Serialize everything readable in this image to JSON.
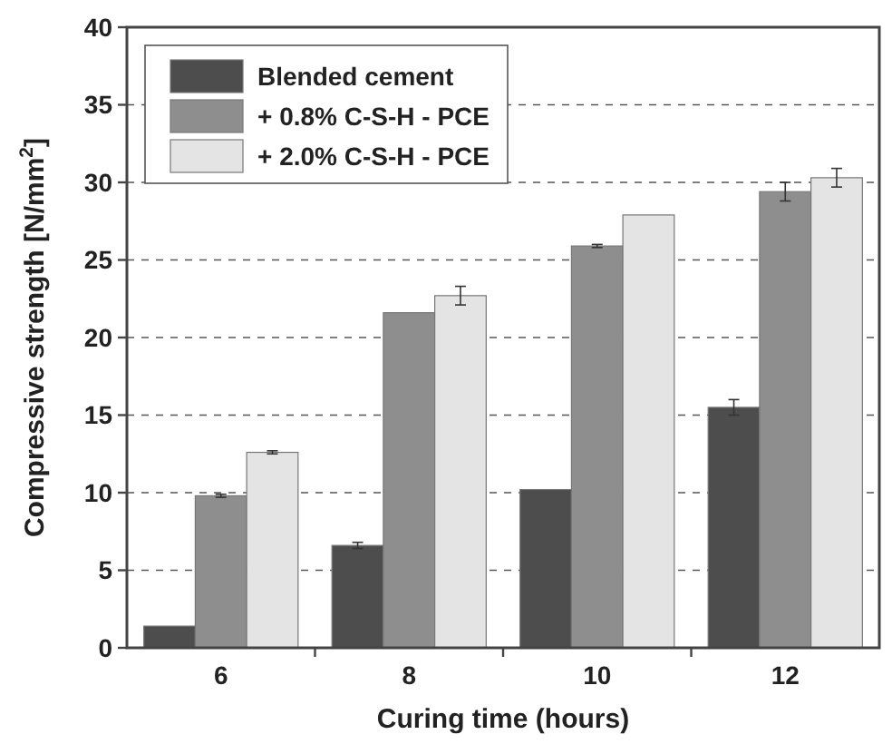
{
  "chart_data": {
    "type": "bar",
    "xlabel": "Curing time (hours)",
    "ylabel": "Compressive strength [N/mm$^{2}$]",
    "categories": [
      "6",
      "8",
      "10",
      "12"
    ],
    "series": [
      {
        "name": "Blended cement",
        "color": "#4d4d4d",
        "values": [
          1.4,
          6.6,
          10.2,
          15.5
        ],
        "errors": [
          null,
          0.2,
          null,
          0.5
        ]
      },
      {
        "name": "+ 0.8% C-S-H - PCE",
        "color": "#8e8e8e",
        "values": [
          9.8,
          21.6,
          25.9,
          29.4
        ],
        "errors": [
          0.1,
          null,
          0.1,
          0.6
        ]
      },
      {
        "name": "+ 2.0% C-S-H - PCE",
        "color": "#e4e4e4",
        "values": [
          12.6,
          22.7,
          27.9,
          30.3
        ],
        "errors": [
          0.1,
          0.6,
          null,
          0.6
        ]
      }
    ],
    "ylim": [
      0,
      40
    ],
    "yticks": [
      0,
      5,
      10,
      15,
      20,
      25,
      30,
      35,
      40
    ],
    "grid": "y",
    "legend": "top left"
  }
}
